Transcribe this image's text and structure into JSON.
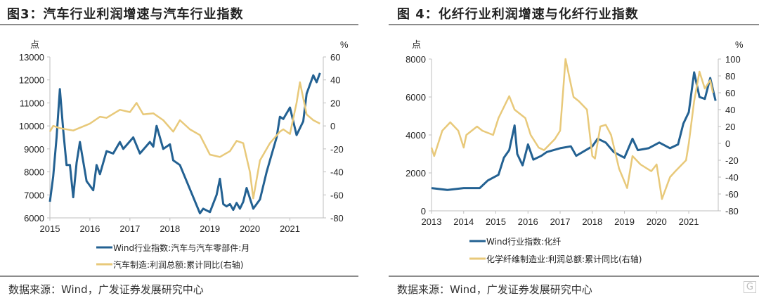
{
  "watermark": "格隆汇",
  "chart_data": [
    {
      "type": "line",
      "title": "图3：汽车行业利润增速与汽车行业指数",
      "source": "数据来源：Wind，广发证券发展研究中心",
      "left_unit": "点",
      "right_unit": "%",
      "xlim": [
        "2015-01",
        "2021-10"
      ],
      "x_ticks": [
        "2015",
        "2016",
        "2017",
        "2018",
        "2019",
        "2020",
        "2021"
      ],
      "ylim_left": [
        6000,
        13000
      ],
      "y_ticks_left": [
        "13000",
        "12000",
        "11000",
        "10000",
        "9000",
        "8000",
        "7000",
        "6000"
      ],
      "ylim_right": [
        -80,
        60
      ],
      "y_ticks_right": [
        "60",
        "40",
        "20",
        "0",
        "-20",
        "-40",
        "-60",
        "-80"
      ],
      "grid": false,
      "legend_placement": "bottom",
      "series": [
        {
          "name": "Wind行业指数:汽车与汽车零部件:月",
          "axis": "left",
          "color": "#236192",
          "points": [
            [
              "2015-01",
              6700
            ],
            [
              "2015-02",
              7800
            ],
            [
              "2015-03",
              9500
            ],
            [
              "2015-04",
              11600
            ],
            [
              "2015-05",
              9800
            ],
            [
              "2015-06",
              8300
            ],
            [
              "2015-07",
              8300
            ],
            [
              "2015-08",
              6900
            ],
            [
              "2015-09",
              8400
            ],
            [
              "2015-10",
              9300
            ],
            [
              "2015-12",
              7600
            ],
            [
              "2016-02",
              7200
            ],
            [
              "2016-03",
              8300
            ],
            [
              "2016-04",
              7900
            ],
            [
              "2016-06",
              8900
            ],
            [
              "2016-08",
              8800
            ],
            [
              "2016-10",
              9300
            ],
            [
              "2016-11",
              9000
            ],
            [
              "2017-02",
              9500
            ],
            [
              "2017-04",
              8800
            ],
            [
              "2017-07",
              9300
            ],
            [
              "2017-08",
              9100
            ],
            [
              "2017-09",
              10000
            ],
            [
              "2017-11",
              9000
            ],
            [
              "2018-01",
              9200
            ],
            [
              "2018-02",
              8500
            ],
            [
              "2018-04",
              8300
            ],
            [
              "2018-06",
              7600
            ],
            [
              "2018-08",
              6900
            ],
            [
              "2018-10",
              6200
            ],
            [
              "2018-11",
              6400
            ],
            [
              "2019-01",
              6250
            ],
            [
              "2019-03",
              7000
            ],
            [
              "2019-04",
              7700
            ],
            [
              "2019-05",
              6600
            ],
            [
              "2019-06",
              6500
            ],
            [
              "2019-07",
              6600
            ],
            [
              "2019-08",
              6350
            ],
            [
              "2019-09",
              6650
            ],
            [
              "2019-10",
              6400
            ],
            [
              "2019-11",
              6700
            ],
            [
              "2019-12",
              7300
            ],
            [
              "2020-02",
              6400
            ],
            [
              "2020-04",
              6800
            ],
            [
              "2020-06",
              8000
            ],
            [
              "2020-07",
              8500
            ],
            [
              "2020-09",
              9500
            ],
            [
              "2020-10",
              10400
            ],
            [
              "2020-11",
              10300
            ],
            [
              "2021-01",
              10800
            ],
            [
              "2021-03",
              9600
            ],
            [
              "2021-05",
              10200
            ],
            [
              "2021-06",
              11400
            ],
            [
              "2021-08",
              12200
            ],
            [
              "2021-09",
              11900
            ],
            [
              "2021-10",
              12300
            ]
          ]
        },
        {
          "name": "汽车制造:利润总额:累计同比(右轴)",
          "axis": "right",
          "color": "#e8c97a",
          "points": [
            [
              "2015-01",
              -5
            ],
            [
              "2015-02",
              0
            ],
            [
              "2015-04",
              -2
            ],
            [
              "2015-08",
              -4
            ],
            [
              "2016-01",
              2
            ],
            [
              "2016-04",
              8
            ],
            [
              "2016-06",
              7
            ],
            [
              "2016-10",
              14
            ],
            [
              "2017-01",
              12
            ],
            [
              "2017-03",
              20
            ],
            [
              "2017-05",
              10
            ],
            [
              "2017-08",
              11
            ],
            [
              "2017-11",
              5
            ],
            [
              "2018-02",
              -5
            ],
            [
              "2018-04",
              5
            ],
            [
              "2018-07",
              -3
            ],
            [
              "2018-10",
              -8
            ],
            [
              "2019-01",
              -25
            ],
            [
              "2019-04",
              -27
            ],
            [
              "2019-07",
              -22
            ],
            [
              "2019-09",
              -13
            ],
            [
              "2019-11",
              -15
            ],
            [
              "2020-01",
              -40
            ],
            [
              "2020-02",
              -63
            ],
            [
              "2020-04",
              -30
            ],
            [
              "2020-07",
              -15
            ],
            [
              "2020-10",
              -5
            ],
            [
              "2020-11",
              -3
            ],
            [
              "2021-01",
              -7
            ],
            [
              "2021-03",
              20
            ],
            [
              "2021-04",
              38
            ],
            [
              "2021-06",
              10
            ],
            [
              "2021-08",
              5
            ],
            [
              "2021-10",
              2
            ]
          ]
        }
      ]
    },
    {
      "type": "line",
      "title": "图 4：化纤行业利润增速与化纤行业指数",
      "source": "数据来源：Wind，广发证券发展研究中心",
      "left_unit": "点",
      "right_unit": "%",
      "xlim": [
        "2013-01",
        "2021-11"
      ],
      "x_ticks": [
        "2013",
        "2014",
        "2015",
        "2016",
        "2017",
        "2018",
        "2019",
        "2020",
        "2021"
      ],
      "ylim_left": [
        0,
        8000
      ],
      "y_ticks_left": [
        "8000",
        "6000",
        "4000",
        "2000",
        "0"
      ],
      "ylim_right": [
        -80,
        100
      ],
      "y_ticks_right": [
        "100",
        "80",
        "60",
        "40",
        "20",
        "0",
        "-20",
        "-40",
        "-60",
        "-80"
      ],
      "grid": false,
      "legend_placement": "bottom",
      "series": [
        {
          "name": "Wind行业指数:化纤",
          "axis": "left",
          "color": "#236192",
          "points": [
            [
              "2013-01",
              1200
            ],
            [
              "2013-07",
              1100
            ],
            [
              "2014-01",
              1200
            ],
            [
              "2014-07",
              1200
            ],
            [
              "2014-10",
              1600
            ],
            [
              "2015-02",
              1900
            ],
            [
              "2015-04",
              2800
            ],
            [
              "2015-06",
              3200
            ],
            [
              "2015-08",
              4500
            ],
            [
              "2015-09",
              3000
            ],
            [
              "2015-11",
              2400
            ],
            [
              "2016-01",
              3500
            ],
            [
              "2016-03",
              2700
            ],
            [
              "2016-06",
              2900
            ],
            [
              "2016-08",
              3100
            ],
            [
              "2017-01",
              3300
            ],
            [
              "2017-05",
              3400
            ],
            [
              "2017-07",
              2900
            ],
            [
              "2018-01",
              3400
            ],
            [
              "2018-03",
              3800
            ],
            [
              "2018-06",
              3600
            ],
            [
              "2018-09",
              3100
            ],
            [
              "2019-01",
              2800
            ],
            [
              "2019-04",
              3800
            ],
            [
              "2019-06",
              3200
            ],
            [
              "2019-10",
              3300
            ],
            [
              "2020-02",
              3600
            ],
            [
              "2020-06",
              3300
            ],
            [
              "2020-09",
              3500
            ],
            [
              "2020-11",
              4600
            ],
            [
              "2021-01",
              5200
            ],
            [
              "2021-03",
              7300
            ],
            [
              "2021-05",
              6000
            ],
            [
              "2021-07",
              5900
            ],
            [
              "2021-09",
              7000
            ],
            [
              "2021-11",
              5800
            ]
          ]
        },
        {
          "name": "化学纤维制造业:利润总额:累计同比(右轴)",
          "axis": "right",
          "color": "#e8c97a",
          "points": [
            [
              "2013-01",
              -5
            ],
            [
              "2013-02",
              -15
            ],
            [
              "2013-05",
              15
            ],
            [
              "2013-08",
              25
            ],
            [
              "2013-11",
              15
            ],
            [
              "2014-01",
              -5
            ],
            [
              "2014-02",
              10
            ],
            [
              "2014-06",
              20
            ],
            [
              "2014-08",
              15
            ],
            [
              "2014-12",
              10
            ],
            [
              "2015-02",
              30
            ],
            [
              "2015-06",
              56
            ],
            [
              "2015-08",
              40
            ],
            [
              "2015-12",
              30
            ],
            [
              "2016-02",
              10
            ],
            [
              "2016-05",
              -5
            ],
            [
              "2016-07",
              -8
            ],
            [
              "2016-11",
              5
            ],
            [
              "2017-01",
              15
            ],
            [
              "2017-03",
              100
            ],
            [
              "2017-06",
              55
            ],
            [
              "2017-08",
              50
            ],
            [
              "2017-11",
              40
            ],
            [
              "2018-01",
              -15
            ],
            [
              "2018-02",
              -18
            ],
            [
              "2018-04",
              20
            ],
            [
              "2018-06",
              22
            ],
            [
              "2018-08",
              10
            ],
            [
              "2018-11",
              -30
            ],
            [
              "2019-02",
              -53
            ],
            [
              "2019-04",
              -15
            ],
            [
              "2019-07",
              -25
            ],
            [
              "2019-11",
              -33
            ],
            [
              "2020-01",
              -25
            ],
            [
              "2020-03",
              -66
            ],
            [
              "2020-06",
              -40
            ],
            [
              "2020-08",
              -33
            ],
            [
              "2020-12",
              -20
            ],
            [
              "2021-01",
              0
            ],
            [
              "2021-03",
              50
            ],
            [
              "2021-05",
              85
            ],
            [
              "2021-07",
              65
            ],
            [
              "2021-09",
              75
            ],
            [
              "2021-10",
              60
            ]
          ]
        }
      ]
    }
  ]
}
